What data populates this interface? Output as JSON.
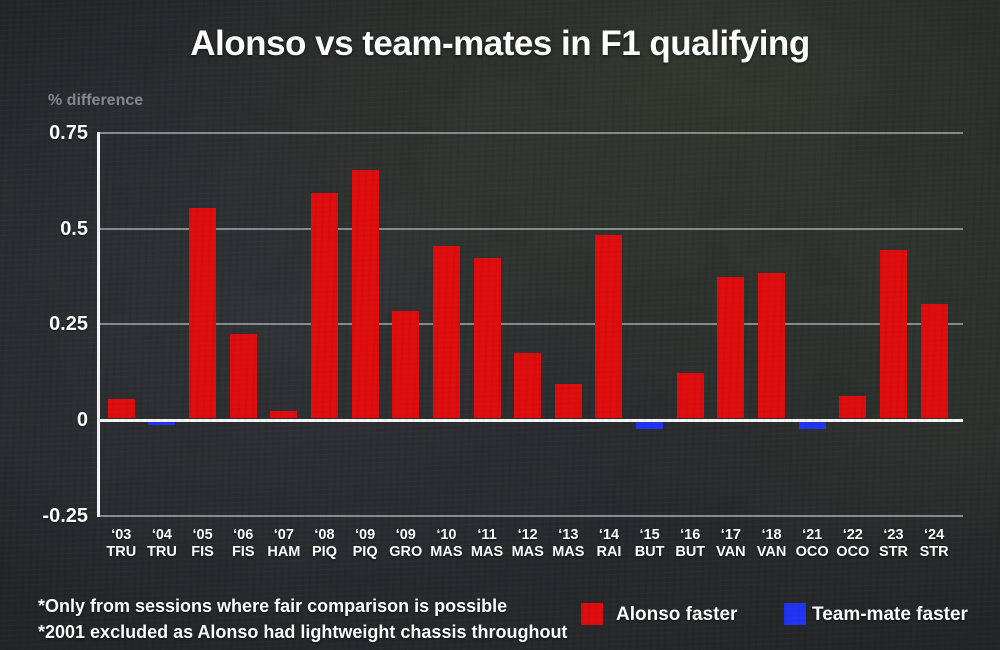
{
  "title": "Alonso vs team-mates in F1 qualifying",
  "y_axis_unit": "% difference",
  "footnotes": [
    "*Only from sessions where fair comparison is possible",
    "*2001 excluded as Alonso had lightweight chassis throughout"
  ],
  "legend": [
    {
      "label": "Alonso faster",
      "color": "#de0c0c"
    },
    {
      "label": "Team-mate faster",
      "color": "#2133f1"
    }
  ],
  "chart_data": {
    "type": "bar",
    "title": "Alonso vs team-mates in F1 qualifying",
    "xlabel": "",
    "ylabel": "% difference",
    "ylim": [
      -0.25,
      0.75
    ],
    "yticks": [
      0.75,
      0.5,
      0.25,
      0,
      -0.25
    ],
    "ytick_labels": [
      "0.75",
      "0.5",
      "0.25",
      "0",
      "-0.25"
    ],
    "grid": true,
    "legend_position": "bottom-right",
    "bar_colors": {
      "positive": "#de0c0c",
      "negative": "#2133f1"
    },
    "categories": [
      {
        "year": "‘03",
        "driver": "TRU"
      },
      {
        "year": "‘04",
        "driver": "TRU"
      },
      {
        "year": "‘05",
        "driver": "FIS"
      },
      {
        "year": "‘06",
        "driver": "FIS"
      },
      {
        "year": "‘07",
        "driver": "HAM"
      },
      {
        "year": "‘08",
        "driver": "PIQ"
      },
      {
        "year": "‘09",
        "driver": "PIQ"
      },
      {
        "year": "‘09",
        "driver": "GRO"
      },
      {
        "year": "‘10",
        "driver": "MAS"
      },
      {
        "year": "‘11",
        "driver": "MAS"
      },
      {
        "year": "‘12",
        "driver": "MAS"
      },
      {
        "year": "‘13",
        "driver": "MAS"
      },
      {
        "year": "‘14",
        "driver": "RAI"
      },
      {
        "year": "‘15",
        "driver": "BUT"
      },
      {
        "year": "‘16",
        "driver": "BUT"
      },
      {
        "year": "‘17",
        "driver": "VAN"
      },
      {
        "year": "‘18",
        "driver": "VAN"
      },
      {
        "year": "‘21",
        "driver": "OCO"
      },
      {
        "year": "‘22",
        "driver": "OCO"
      },
      {
        "year": "‘23",
        "driver": "STR"
      },
      {
        "year": "‘24",
        "driver": "STR"
      }
    ],
    "values": [
      0.05,
      -0.01,
      0.55,
      0.22,
      0.02,
      0.59,
      0.65,
      0.28,
      0.45,
      0.42,
      0.17,
      0.09,
      0.48,
      -0.02,
      0.12,
      0.37,
      0.38,
      -0.02,
      0.06,
      0.44,
      0.3
    ]
  }
}
